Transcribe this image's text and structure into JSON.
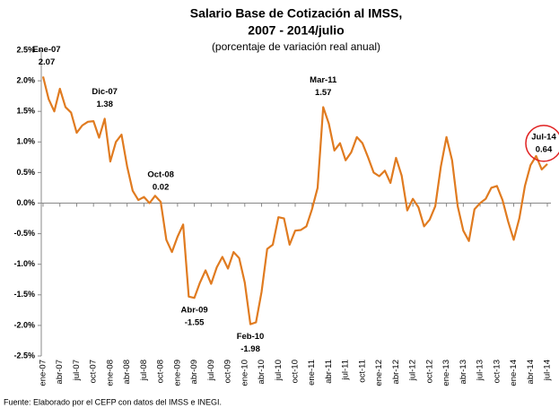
{
  "chart_data": {
    "type": "line",
    "title": "Salario Base de Cotización al IMSS,",
    "title2": "2007 - 2014/julio",
    "subtitle": "(porcentaje de variación real anual)",
    "source": "Fuente: Elaborado por el CEFP con datos del IMSS e INEGI.",
    "categories": [
      "ene-07",
      null,
      null,
      "abr-07",
      null,
      null,
      "jul-07",
      null,
      null,
      "oct-07",
      null,
      null,
      "ene-08",
      null,
      null,
      "abr-08",
      null,
      null,
      "jul-08",
      null,
      null,
      "oct-08",
      null,
      null,
      "ene-09",
      null,
      null,
      "abr-09",
      null,
      null,
      "jul-09",
      null,
      null,
      "oct-09",
      null,
      null,
      "ene-10",
      null,
      null,
      "abr-10",
      null,
      null,
      "jul-10",
      null,
      null,
      "oct-10",
      null,
      null,
      "ene-11",
      null,
      null,
      "abr-11",
      null,
      null,
      "jul-11",
      null,
      null,
      "oct-11",
      null,
      null,
      "ene-12",
      null,
      null,
      "abr-12",
      null,
      null,
      "jul-12",
      null,
      null,
      "oct-12",
      null,
      null,
      "ene-13",
      null,
      null,
      "abr-13",
      null,
      null,
      "jul-13",
      null,
      null,
      "oct-13",
      null,
      null,
      "ene-14",
      null,
      null,
      "abr-14",
      null,
      null,
      "jul-14"
    ],
    "series": [
      {
        "name": "Salario Base de Cotización",
        "color": "#e07b20",
        "values": [
          2.07,
          1.7,
          1.5,
          1.87,
          1.57,
          1.48,
          1.15,
          1.27,
          1.33,
          1.34,
          1.07,
          1.38,
          0.68,
          1.0,
          1.12,
          0.6,
          0.2,
          0.05,
          0.1,
          0.0,
          0.12,
          0.02,
          -0.6,
          -0.8,
          -0.55,
          -0.35,
          -1.53,
          -1.55,
          -1.3,
          -1.1,
          -1.32,
          -1.05,
          -0.88,
          -1.07,
          -0.8,
          -0.9,
          -1.3,
          -1.98,
          -1.95,
          -1.45,
          -0.75,
          -0.68,
          -0.23,
          -0.25,
          -0.68,
          -0.45,
          -0.44,
          -0.38,
          -0.1,
          0.25,
          1.57,
          1.3,
          0.86,
          0.98,
          0.7,
          0.83,
          1.08,
          0.98,
          0.75,
          0.5,
          0.44,
          0.53,
          0.33,
          0.74,
          0.45,
          -0.12,
          0.07,
          -0.07,
          -0.38,
          -0.27,
          -0.05,
          0.6,
          1.08,
          0.7,
          -0.05,
          -0.45,
          -0.62,
          -0.1,
          0.0,
          0.07,
          0.25,
          0.28,
          0.05,
          -0.3,
          -0.6,
          -0.25,
          0.28,
          0.62,
          0.77,
          0.55,
          0.64
        ],
        "point_labels": [
          "Ene-07",
          null,
          null,
          null,
          null,
          null,
          null,
          null,
          null,
          null,
          null,
          "Dic-07",
          null,
          null,
          null,
          null,
          null,
          null,
          null,
          null,
          null,
          "Oct-08",
          null,
          null,
          null,
          null,
          null,
          "Abr-09",
          null,
          null,
          null,
          null,
          null,
          null,
          null,
          null,
          null,
          "Feb-10",
          null,
          null,
          null,
          null,
          null,
          null,
          null,
          null,
          null,
          null,
          null,
          null,
          "Mar-11",
          null,
          null,
          null,
          null,
          null,
          null,
          null,
          null,
          null,
          null,
          null,
          null,
          null,
          null,
          null,
          null,
          null,
          null,
          null,
          null,
          null,
          null,
          null,
          null,
          null,
          null,
          null,
          null,
          null,
          null,
          null,
          null,
          null,
          null,
          null,
          null,
          null,
          null,
          null,
          "Jul-14"
        ]
      }
    ],
    "ylim": [
      -2.5,
      2.5
    ],
    "yticks": [
      {
        "value": -2.5,
        "label": "-2.5%"
      },
      {
        "value": -2.0,
        "label": "-2.0%"
      },
      {
        "value": -1.5,
        "label": "-1.5%"
      },
      {
        "value": -1.0,
        "label": "-1.0%"
      },
      {
        "value": -0.5,
        "label": "-0.5%"
      },
      {
        "value": 0.0,
        "label": "0.0%"
      },
      {
        "value": 0.5,
        "label": "0.5%"
      },
      {
        "value": 1.0,
        "label": "1.0%"
      },
      {
        "value": 1.5,
        "label": "1.5%"
      },
      {
        "value": 2.0,
        "label": "2.0%"
      },
      {
        "value": 2.5,
        "label": "2.5%"
      }
    ],
    "grid": false
  }
}
